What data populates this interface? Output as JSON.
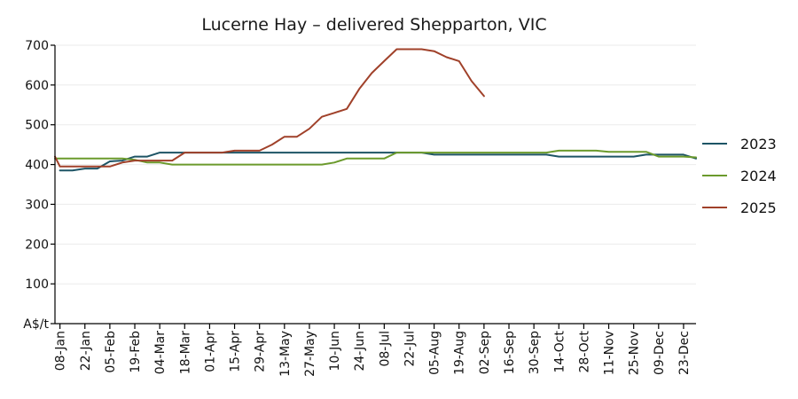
{
  "chart_data": {
    "type": "line",
    "title": "Lucerne Hay – delivered Shepparton, VIC",
    "ylabel": "A$/t",
    "xlabel": "",
    "ylim": [
      0,
      700
    ],
    "yticks": [
      0,
      100,
      200,
      300,
      400,
      500,
      600,
      700
    ],
    "ytick_labels": [
      "A$/t",
      "100",
      "200",
      "300",
      "400",
      "500",
      "600",
      "700"
    ],
    "grid": "horizontal",
    "legend_position": "right",
    "x_tick_labels": [
      "08-Jan",
      "22-Jan",
      "05-Feb",
      "19-Feb",
      "04-Mar",
      "18-Mar",
      "01-Apr",
      "15-Apr",
      "29-Apr",
      "13-May",
      "27-May",
      "10-Jun",
      "24-Jun",
      "08-Jul",
      "22-Jul",
      "05-Aug",
      "19-Aug",
      "02-Sep",
      "16-Sep",
      "30-Sep",
      "14-Oct",
      "28-Oct",
      "11-Nov",
      "25-Nov",
      "09-Dec",
      "23-Dec"
    ],
    "x_tick_weeks": [
      1,
      3,
      5,
      7,
      9,
      11,
      13,
      15,
      17,
      19,
      21,
      23,
      25,
      27,
      29,
      31,
      33,
      35,
      37,
      39,
      41,
      43,
      45,
      47,
      49,
      51
    ],
    "x_range_weeks": [
      0.6,
      52
    ],
    "series": [
      {
        "name": "2023",
        "color": "#1d5465",
        "points": [
          [
            1,
            385
          ],
          [
            2,
            385
          ],
          [
            3,
            390
          ],
          [
            4,
            390
          ],
          [
            5,
            408
          ],
          [
            6,
            410
          ],
          [
            7,
            420
          ],
          [
            8,
            420
          ],
          [
            9,
            430
          ],
          [
            10,
            430
          ],
          [
            11,
            430
          ],
          [
            12,
            430
          ],
          [
            13,
            430
          ],
          [
            14,
            430
          ],
          [
            15,
            430
          ],
          [
            16,
            430
          ],
          [
            17,
            430
          ],
          [
            18,
            430
          ],
          [
            19,
            430
          ],
          [
            20,
            430
          ],
          [
            21,
            430
          ],
          [
            22,
            430
          ],
          [
            23,
            430
          ],
          [
            24,
            430
          ],
          [
            25,
            430
          ],
          [
            26,
            430
          ],
          [
            27,
            430
          ],
          [
            28,
            430
          ],
          [
            29,
            430
          ],
          [
            30,
            430
          ],
          [
            31,
            425
          ],
          [
            32,
            425
          ],
          [
            33,
            425
          ],
          [
            34,
            425
          ],
          [
            35,
            425
          ],
          [
            36,
            425
          ],
          [
            37,
            425
          ],
          [
            38,
            425
          ],
          [
            39,
            425
          ],
          [
            40,
            425
          ],
          [
            41,
            420
          ],
          [
            42,
            420
          ],
          [
            43,
            420
          ],
          [
            44,
            420
          ],
          [
            45,
            420
          ],
          [
            46,
            420
          ],
          [
            47,
            420
          ],
          [
            48,
            425
          ],
          [
            49,
            425
          ],
          [
            50,
            425
          ],
          [
            51,
            425
          ],
          [
            52,
            415
          ]
        ]
      },
      {
        "name": "2024",
        "color": "#6b9a2c",
        "points": [
          [
            0.6,
            415
          ],
          [
            1,
            415
          ],
          [
            2,
            415
          ],
          [
            3,
            415
          ],
          [
            4,
            415
          ],
          [
            5,
            415
          ],
          [
            6,
            415
          ],
          [
            7,
            412
          ],
          [
            8,
            405
          ],
          [
            9,
            405
          ],
          [
            10,
            400
          ],
          [
            11,
            400
          ],
          [
            12,
            400
          ],
          [
            13,
            400
          ],
          [
            14,
            400
          ],
          [
            15,
            400
          ],
          [
            16,
            400
          ],
          [
            17,
            400
          ],
          [
            18,
            400
          ],
          [
            19,
            400
          ],
          [
            20,
            400
          ],
          [
            21,
            400
          ],
          [
            22,
            400
          ],
          [
            23,
            405
          ],
          [
            24,
            415
          ],
          [
            25,
            415
          ],
          [
            26,
            415
          ],
          [
            27,
            415
          ],
          [
            28,
            430
          ],
          [
            29,
            430
          ],
          [
            30,
            430
          ],
          [
            31,
            430
          ],
          [
            32,
            430
          ],
          [
            33,
            430
          ],
          [
            34,
            430
          ],
          [
            35,
            430
          ],
          [
            36,
            430
          ],
          [
            37,
            430
          ],
          [
            38,
            430
          ],
          [
            39,
            430
          ],
          [
            40,
            430
          ],
          [
            41,
            435
          ],
          [
            42,
            435
          ],
          [
            43,
            435
          ],
          [
            44,
            435
          ],
          [
            45,
            432
          ],
          [
            46,
            432
          ],
          [
            47,
            432
          ],
          [
            48,
            432
          ],
          [
            49,
            420
          ],
          [
            50,
            420
          ],
          [
            51,
            420
          ],
          [
            52,
            418
          ]
        ]
      },
      {
        "name": "2025",
        "color": "#a0412a",
        "points": [
          [
            0.6,
            420
          ],
          [
            1,
            395
          ],
          [
            2,
            395
          ],
          [
            3,
            395
          ],
          [
            4,
            395
          ],
          [
            5,
            395
          ],
          [
            6,
            405
          ],
          [
            7,
            410
          ],
          [
            8,
            410
          ],
          [
            9,
            410
          ],
          [
            10,
            410
          ],
          [
            11,
            430
          ],
          [
            12,
            430
          ],
          [
            13,
            430
          ],
          [
            14,
            430
          ],
          [
            15,
            435
          ],
          [
            16,
            435
          ],
          [
            17,
            435
          ],
          [
            18,
            450
          ],
          [
            19,
            470
          ],
          [
            20,
            470
          ],
          [
            21,
            490
          ],
          [
            22,
            520
          ],
          [
            23,
            530
          ],
          [
            24,
            540
          ],
          [
            25,
            590
          ],
          [
            26,
            630
          ],
          [
            27,
            660
          ],
          [
            28,
            690
          ],
          [
            29,
            690
          ],
          [
            30,
            690
          ],
          [
            31,
            685
          ],
          [
            32,
            670
          ],
          [
            33,
            660
          ],
          [
            34,
            610
          ],
          [
            35,
            572
          ]
        ]
      }
    ]
  }
}
